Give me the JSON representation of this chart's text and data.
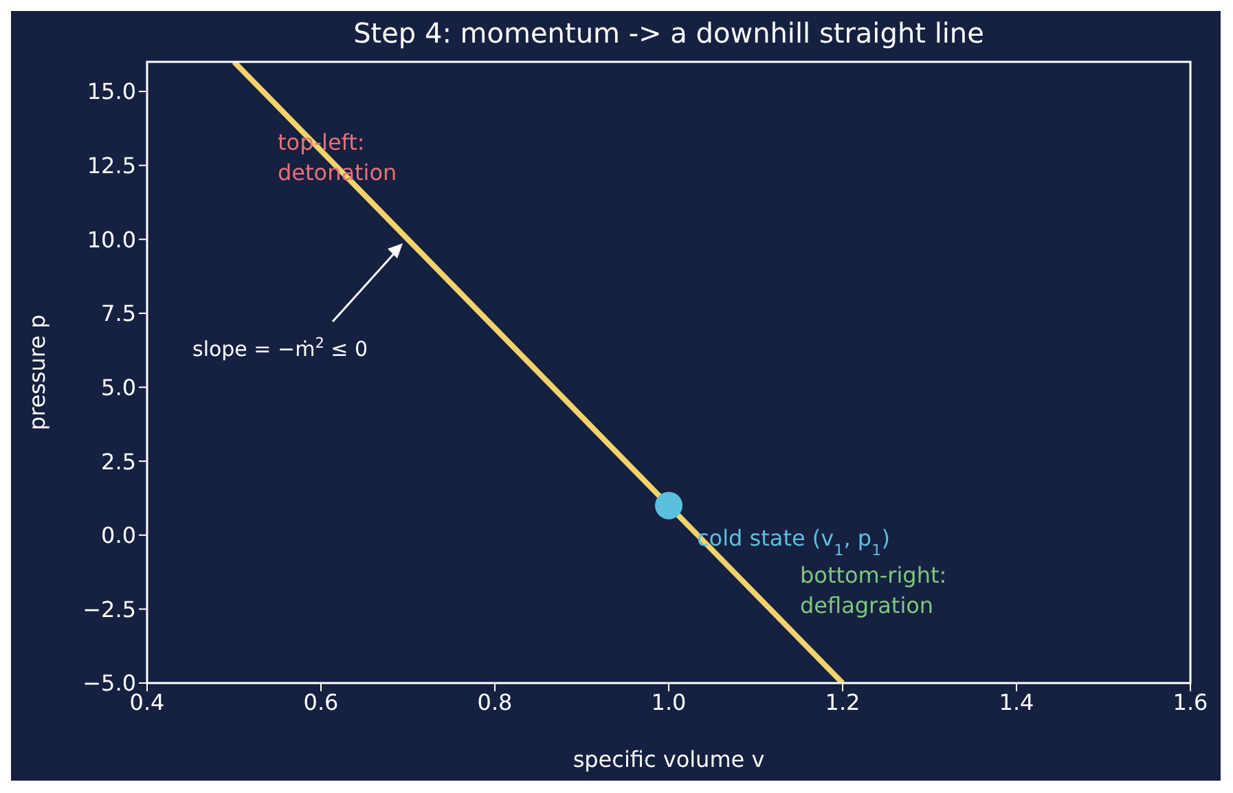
{
  "chart_data": {
    "type": "line",
    "title": "Step 4: momentum -> a downhill straight line",
    "xlabel": "specific volume v",
    "ylabel": "pressure p",
    "xlim": [
      0.4,
      1.6
    ],
    "xticks": [
      {
        "value": 0.4,
        "label": "0.4"
      },
      {
        "value": 0.6,
        "label": "0.6"
      },
      {
        "value": 0.8,
        "label": "0.8"
      },
      {
        "value": 1.0,
        "label": "1.0"
      },
      {
        "value": 1.2,
        "label": "1.2"
      },
      {
        "value": 1.4,
        "label": "1.4"
      },
      {
        "value": 1.6,
        "label": "1.6"
      }
    ],
    "ylim": [
      -5,
      16
    ],
    "yticks": [
      {
        "value": -5,
        "label": "−5.0"
      },
      {
        "value": -2.5,
        "label": "−2.5"
      },
      {
        "value": 0,
        "label": "0.0"
      },
      {
        "value": 2.5,
        "label": "2.5"
      },
      {
        "value": 5,
        "label": "5.0"
      },
      {
        "value": 7.5,
        "label": "7.5"
      },
      {
        "value": 10,
        "label": "10.0"
      },
      {
        "value": 12.5,
        "label": "12.5"
      },
      {
        "value": 15,
        "label": "15.0"
      }
    ],
    "grid": false,
    "legend": false,
    "series": [
      {
        "type": "line",
        "color": "#f2d36b",
        "x": [
          0.5,
          1.2
        ],
        "values": [
          16,
          -5
        ],
        "marker": "none"
      },
      {
        "type": "scatter",
        "color": "#5bc0de",
        "x": [
          1.0
        ],
        "values": [
          1.0
        ],
        "marker": "circle"
      }
    ],
    "annotations": [
      "slope = −ṁ$^{2}$ ≤ 0",
      "cold state (v$_{1}$, p$_{1}$)",
      "top-left:\ndetonation",
      "bottom-right:\ndeflagration"
    ]
  }
}
